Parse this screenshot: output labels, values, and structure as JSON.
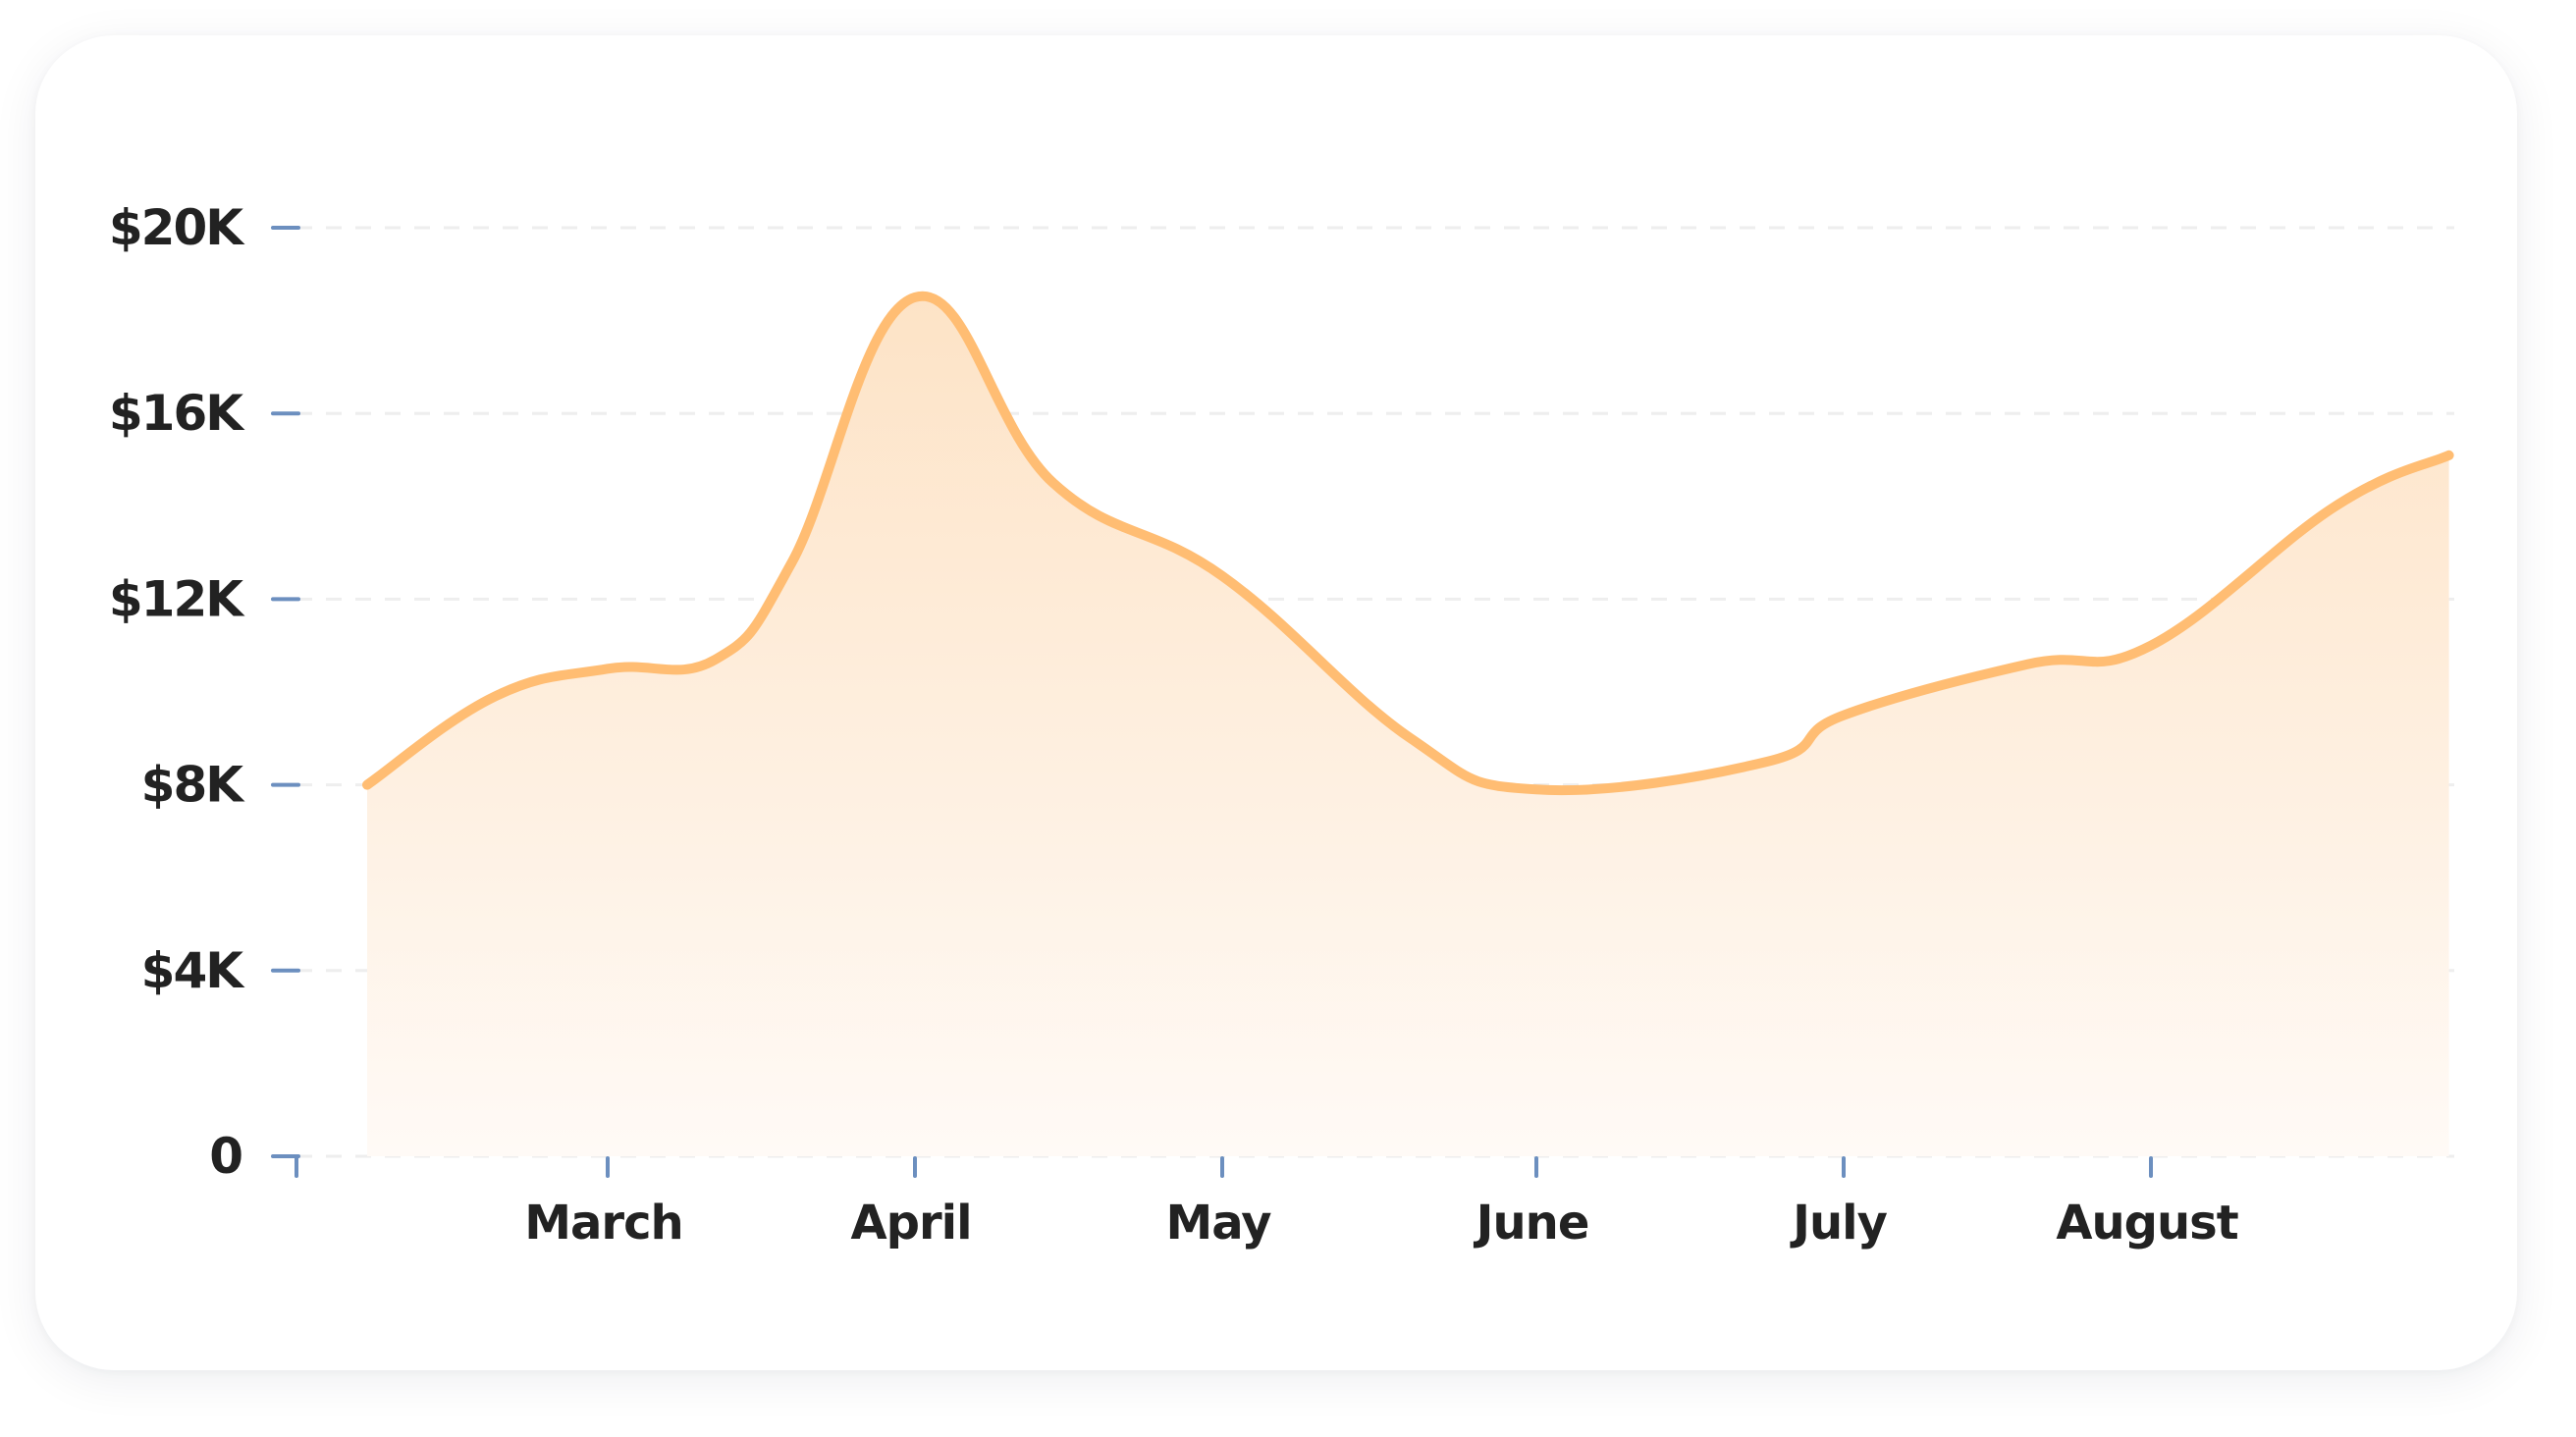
{
  "chart_data": {
    "type": "area",
    "title": "",
    "xlabel": "",
    "ylabel": "",
    "x": [
      2.15,
      2.6,
      3.0,
      3.35,
      3.6,
      4.0,
      4.45,
      5.0,
      5.6,
      6.0,
      6.75,
      7.0,
      7.6,
      8.0,
      8.6,
      8.97
    ],
    "y": [
      8000,
      9900,
      10500,
      10700,
      12800,
      18500,
      14500,
      12500,
      9000,
      7900,
      8500,
      9500,
      10600,
      11000,
      14000,
      15100
    ],
    "x_axis": {
      "range": [
        1.9,
        9.0
      ],
      "ticks": [
        {
          "value": 1.9,
          "label": ""
        },
        {
          "value": 3.0,
          "label": "March"
        },
        {
          "value": 4.0,
          "label": "April"
        },
        {
          "value": 5.0,
          "label": "May"
        },
        {
          "value": 6.0,
          "label": "June"
        },
        {
          "value": 7.0,
          "label": "July"
        },
        {
          "value": 8.0,
          "label": "August"
        }
      ]
    },
    "y_axis": {
      "range": [
        0,
        20000
      ],
      "ticks": [
        {
          "value": 0,
          "label": "0"
        },
        {
          "value": 4000,
          "label": "$4K"
        },
        {
          "value": 8000,
          "label": "$8K"
        },
        {
          "value": 12000,
          "label": "$12K"
        },
        {
          "value": 16000,
          "label": "$16K"
        },
        {
          "value": 20000,
          "label": "$20K"
        }
      ]
    },
    "grid": true,
    "grid_style": "dashed horizontal",
    "legend": "none",
    "colors": {
      "line": "#ffbd73",
      "fill_top": "#fde3c6",
      "fill_bottom": "#fffaf6",
      "grid": "#eeeeee",
      "tick": "#6c8fbf",
      "label": "#222222"
    }
  }
}
